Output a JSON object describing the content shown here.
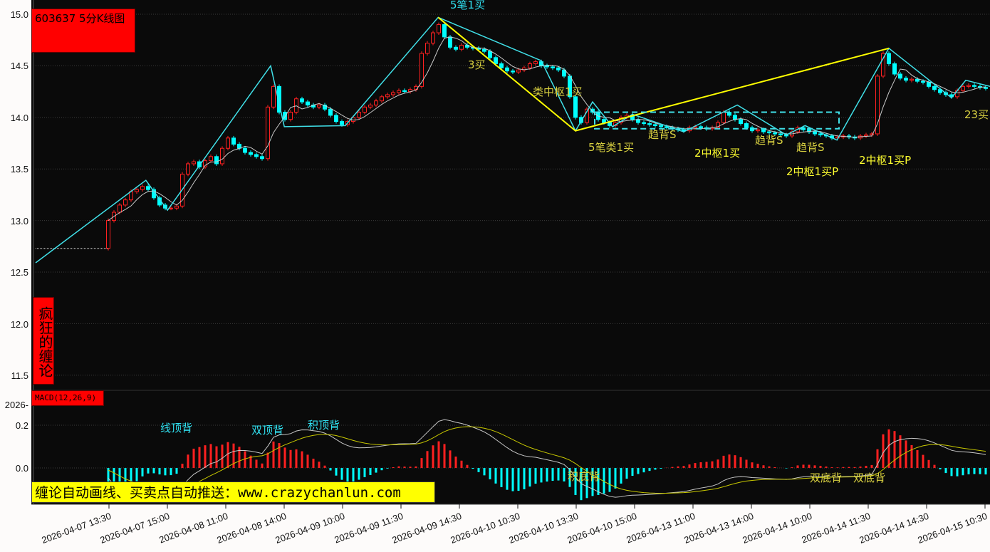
{
  "header": {
    "title": "603637 5分K线图",
    "brand": "疯狂的缠论",
    "macd_label": "MACD(12,26,9)",
    "banner": "缠论自动画线、买卖点自动推送：www.crazychanlun.com",
    "cut_label": "2026-"
  },
  "colors": {
    "background": "#0a0a0a",
    "up": "#ff2020",
    "down": "#00ffff",
    "stroke_line": "#40e0e8",
    "segment_line": "#ffff00",
    "ma": "#c8c8c8",
    "dea": "#c8c800",
    "annotation": "#d8d040",
    "annotation_cyan": "#30e0f0"
  },
  "chart_data": [
    {
      "type": "candlestick",
      "ylim": [
        11.4,
        15.0
      ],
      "yticks": [
        "15.0",
        "14.5",
        "14.0",
        "13.5",
        "13.0",
        "12.5",
        "12.0",
        "11.5"
      ],
      "grid": true,
      "prev_close": 12.73,
      "xtick_labels": [
        "2026-04-07 13:30",
        "2026-04-07 15:00",
        "2026-04-08 11:00",
        "2026-04-08 14:00",
        "2026-04-09 10:00",
        "2026-04-09 11:30",
        "2026-04-09 14:30",
        "2026-04-10 10:30",
        "2026-04-10 13:30",
        "2026-04-10 15:00",
        "2026-04-13 11:00",
        "2026-04-13 14:00",
        "2026-04-14 10:00",
        "2026-04-14 11:30",
        "2026-04-14 14:30",
        "2026-04-15 10:30",
        "2026-04-15"
      ],
      "closes": [
        13.0,
        13.08,
        13.15,
        13.2,
        13.28,
        13.3,
        13.33,
        13.3,
        13.22,
        13.15,
        13.12,
        13.12,
        13.14,
        13.45,
        13.55,
        13.57,
        13.52,
        13.58,
        13.62,
        13.55,
        13.7,
        13.8,
        13.74,
        13.7,
        13.66,
        13.64,
        13.62,
        13.6,
        14.1,
        14.3,
        14.05,
        13.98,
        14.05,
        14.18,
        14.15,
        14.12,
        14.1,
        14.12,
        14.08,
        14.02,
        13.96,
        13.93,
        13.96,
        14.0,
        14.05,
        14.1,
        14.12,
        14.16,
        14.2,
        14.22,
        14.24,
        14.26,
        14.25,
        14.27,
        14.3,
        14.62,
        14.72,
        14.82,
        14.9,
        14.78,
        14.68,
        14.66,
        14.7,
        14.68,
        14.67,
        14.66,
        14.64,
        14.58,
        14.52,
        14.48,
        14.45,
        14.44,
        14.46,
        14.48,
        14.52,
        14.54,
        14.5,
        14.49,
        14.48,
        14.46,
        14.4,
        14.2,
        14.0,
        13.95,
        14.08,
        14.05,
        13.98,
        13.95,
        13.92,
        13.95,
        14.0,
        14.02,
        13.98,
        13.95,
        13.94,
        13.93,
        13.92,
        13.91,
        13.9,
        13.89,
        13.88,
        13.87,
        13.9,
        13.91,
        13.9,
        13.89,
        13.9,
        13.95,
        14.05,
        14.02,
        13.98,
        13.94,
        13.9,
        13.87,
        13.88,
        13.86,
        13.85,
        13.84,
        13.83,
        13.82,
        13.86,
        13.9,
        13.88,
        13.86,
        13.84,
        13.83,
        13.82,
        13.8,
        13.81,
        13.82,
        13.81,
        13.8,
        13.82,
        13.83,
        13.84,
        14.4,
        14.62,
        14.52,
        14.42,
        14.38,
        14.36,
        14.37,
        14.35,
        14.34,
        14.3,
        14.27,
        14.24,
        14.22,
        14.2,
        14.26,
        14.3,
        14.31,
        14.3,
        14.29,
        14.28
      ],
      "bi_strokes": [
        [
          12.59
        ],
        [
          13.39
        ],
        [
          13.1
        ],
        [
          14.5
        ],
        [
          13.91
        ],
        [
          13.92
        ],
        [
          14.97
        ],
        [
          14.55
        ],
        [
          13.87
        ],
        [
          14.15
        ],
        [
          13.91
        ],
        [
          14.03
        ],
        [
          13.86
        ],
        [
          14.12
        ],
        [
          13.83
        ],
        [
          13.92
        ],
        [
          13.78
        ],
        [
          14.67
        ],
        [
          14.19
        ],
        [
          14.36
        ],
        [
          14.3
        ]
      ],
      "segments": [
        14.97,
        13.87,
        14.67
      ],
      "zhongshu": {
        "high": 14.05,
        "low": 13.89
      },
      "annotations": [
        "5笔1买",
        "3买",
        "类中枢1买",
        "5笔类1买",
        "趋背S",
        "2中枢1买",
        "趋背S",
        "趋背S",
        "2中枢1买P",
        "2中枢1买P",
        "23买"
      ]
    },
    {
      "type": "macd",
      "params": [
        12,
        26,
        9
      ],
      "yticks": [
        "0.2",
        "0.0"
      ],
      "annotations": [
        "线顶背",
        "双顶背",
        "积顶背",
        "积底背",
        "双底背",
        "双底背"
      ]
    }
  ]
}
